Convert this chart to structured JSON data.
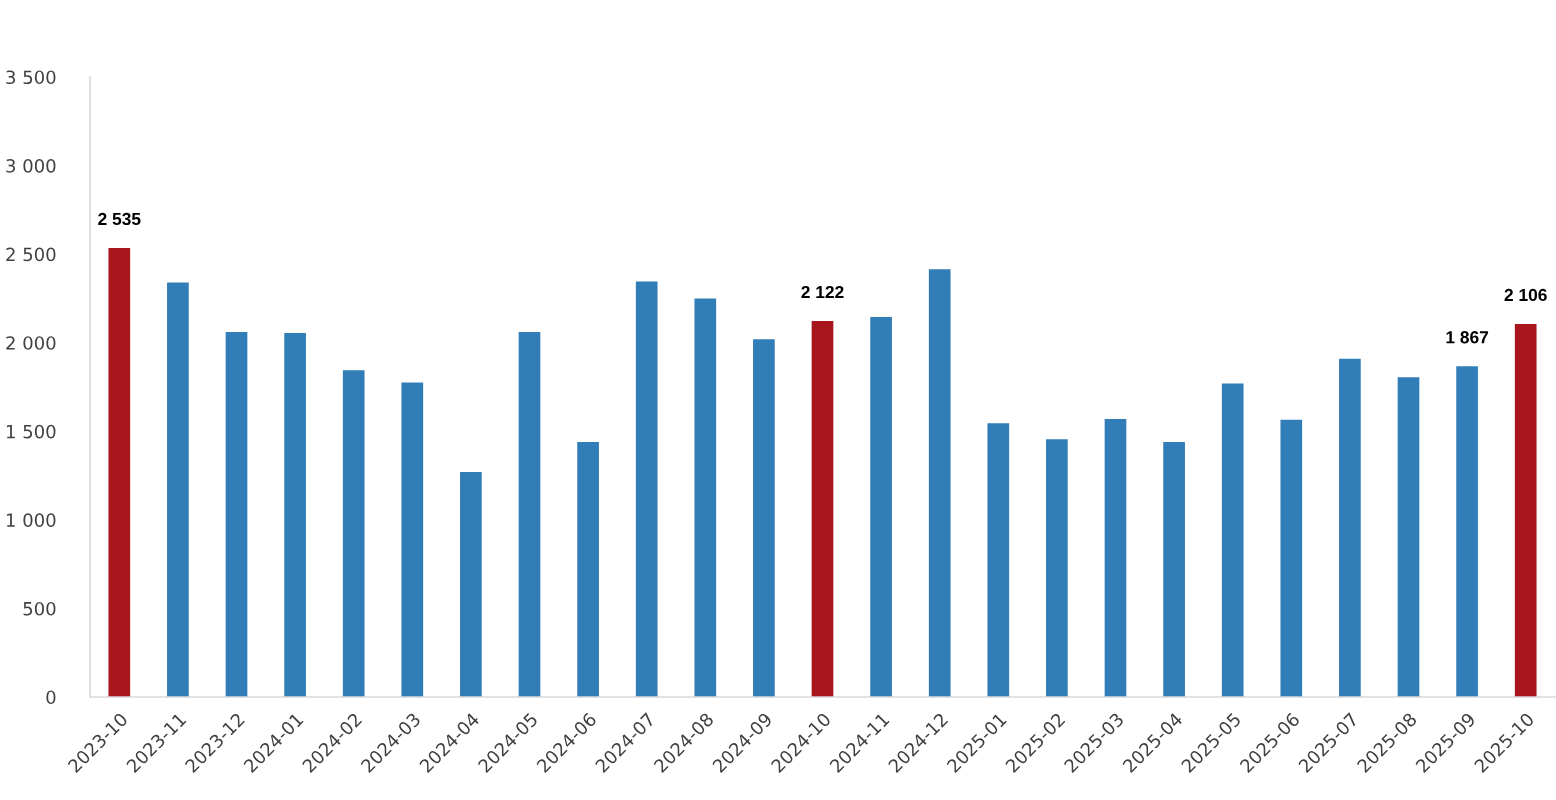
{
  "chart_data": {
    "type": "bar",
    "categories": [
      "2023-10",
      "2023-11",
      "2023-12",
      "2024-01",
      "2024-02",
      "2024-03",
      "2024-04",
      "2024-05",
      "2024-06",
      "2024-07",
      "2024-08",
      "2024-09",
      "2024-10",
      "2024-11",
      "2024-12",
      "2025-01",
      "2025-02",
      "2025-03",
      "2025-04",
      "2025-05",
      "2025-06",
      "2025-07",
      "2025-08",
      "2025-09",
      "2025-10"
    ],
    "values": [
      2535,
      2340,
      2060,
      2055,
      1845,
      1775,
      1270,
      2060,
      1440,
      2345,
      2250,
      2020,
      2122,
      2145,
      2415,
      1545,
      1455,
      1570,
      1440,
      1770,
      1565,
      1910,
      1805,
      1867,
      2106
    ],
    "colors": [
      "#a8151c",
      "#307db7",
      "#307db7",
      "#307db7",
      "#307db7",
      "#307db7",
      "#307db7",
      "#307db7",
      "#307db7",
      "#307db7",
      "#307db7",
      "#307db7",
      "#a8151c",
      "#307db7",
      "#307db7",
      "#307db7",
      "#307db7",
      "#307db7",
      "#307db7",
      "#307db7",
      "#307db7",
      "#307db7",
      "#307db7",
      "#307db7",
      "#a8151c"
    ],
    "value_labels": [
      "2 535",
      null,
      null,
      null,
      null,
      null,
      null,
      null,
      null,
      null,
      null,
      null,
      "2 122",
      null,
      null,
      null,
      null,
      null,
      null,
      null,
      null,
      null,
      null,
      "1 867",
      "2 106"
    ],
    "ylim": [
      0,
      3500
    ],
    "yticks": [
      {
        "value": 0,
        "label": "0"
      },
      {
        "value": 500,
        "label": "500"
      },
      {
        "value": 1000,
        "label": "1 000"
      },
      {
        "value": 1500,
        "label": "1 500"
      },
      {
        "value": 2000,
        "label": "2 000"
      },
      {
        "value": 2500,
        "label": "2 500"
      },
      {
        "value": 3000,
        "label": "3 000"
      },
      {
        "value": 3500,
        "label": "3 500"
      }
    ]
  }
}
